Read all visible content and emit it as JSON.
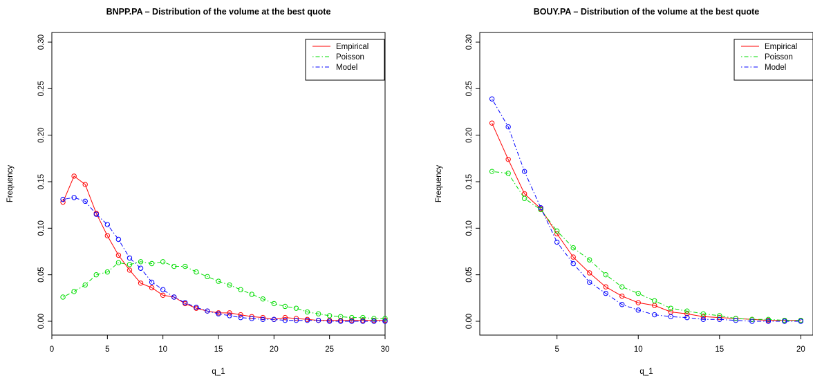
{
  "chart_data": [
    {
      "type": "line",
      "title": "BNPP.PA – Distribution of the volume at the best quote",
      "xlabel": "q_1",
      "ylabel": "Frequency",
      "xlim": [
        0,
        30
      ],
      "ylim": [
        0,
        0.3
      ],
      "xticks": [
        "0",
        "5",
        "10",
        "15",
        "20",
        "25",
        "30"
      ],
      "yticks": [
        "0.00",
        "0.05",
        "0.10",
        "0.15",
        "0.20",
        "0.25",
        "0.30"
      ],
      "legend_position": "top-right",
      "legend": [
        "Empirical",
        "Poisson",
        "Model"
      ],
      "x": [
        1,
        2,
        3,
        4,
        5,
        6,
        7,
        8,
        9,
        10,
        11,
        12,
        13,
        14,
        15,
        16,
        17,
        18,
        19,
        20,
        21,
        22,
        23,
        24,
        25,
        26,
        27,
        28,
        29,
        30
      ],
      "series": [
        {
          "name": "Empirical",
          "color": "#ff0000",
          "dash": "solid",
          "values": [
            0.128,
            0.156,
            0.147,
            0.116,
            0.092,
            0.071,
            0.055,
            0.041,
            0.036,
            0.028,
            0.026,
            0.019,
            0.014,
            0.011,
            0.009,
            0.009,
            0.007,
            0.005,
            0.004,
            0.002,
            0.004,
            0.003,
            0.002,
            0.001,
            0.001,
            0.001,
            0.001,
            0.001,
            0.001,
            0.001
          ]
        },
        {
          "name": "Poisson",
          "color": "#00dd00",
          "dash": "dotdash",
          "values": [
            0.026,
            0.032,
            0.039,
            0.05,
            0.053,
            0.063,
            0.061,
            0.064,
            0.062,
            0.064,
            0.059,
            0.059,
            0.053,
            0.048,
            0.043,
            0.039,
            0.034,
            0.029,
            0.024,
            0.019,
            0.016,
            0.014,
            0.01,
            0.008,
            0.006,
            0.005,
            0.004,
            0.004,
            0.003,
            0.003
          ]
        },
        {
          "name": "Model",
          "color": "#0000ff",
          "dash": "dotdash",
          "values": [
            0.131,
            0.133,
            0.129,
            0.115,
            0.104,
            0.088,
            0.068,
            0.057,
            0.042,
            0.034,
            0.026,
            0.02,
            0.015,
            0.011,
            0.008,
            0.006,
            0.004,
            0.003,
            0.002,
            0.002,
            0.001,
            0.001,
            0.001,
            0.001,
            0.0,
            0.0,
            0.0,
            0.0,
            0.0,
            0.0
          ]
        }
      ]
    },
    {
      "type": "line",
      "title": "BOUY.PA – Distribution of the volume at the best quote",
      "xlabel": "q_1",
      "ylabel": "Frequency",
      "xlim": [
        0.25,
        20.75
      ],
      "ylim": [
        0,
        0.3
      ],
      "xticks": [
        "5",
        "10",
        "15",
        "20"
      ],
      "yticks": [
        "0.00",
        "0.05",
        "0.10",
        "0.15",
        "0.20",
        "0.25",
        "0.30"
      ],
      "legend_position": "top-right",
      "legend": [
        "Empirical",
        "Poisson",
        "Model"
      ],
      "x": [
        1,
        2,
        3,
        4,
        5,
        6,
        7,
        8,
        9,
        10,
        11,
        12,
        13,
        14,
        15,
        16,
        17,
        18,
        19,
        20
      ],
      "series": [
        {
          "name": "Empirical",
          "color": "#ff0000",
          "dash": "solid",
          "values": [
            0.213,
            0.174,
            0.137,
            0.121,
            0.094,
            0.069,
            0.052,
            0.037,
            0.027,
            0.02,
            0.017,
            0.01,
            0.008,
            0.005,
            0.004,
            0.003,
            0.002,
            0.001,
            0.001,
            0.001
          ]
        },
        {
          "name": "Poisson",
          "color": "#00dd00",
          "dash": "dotdash",
          "values": [
            0.161,
            0.159,
            0.132,
            0.12,
            0.097,
            0.079,
            0.066,
            0.05,
            0.037,
            0.03,
            0.022,
            0.014,
            0.011,
            0.008,
            0.006,
            0.003,
            0.002,
            0.002,
            0.001,
            0.001
          ]
        },
        {
          "name": "Model",
          "color": "#0000ff",
          "dash": "dotdash",
          "values": [
            0.239,
            0.209,
            0.161,
            0.122,
            0.085,
            0.062,
            0.042,
            0.03,
            0.018,
            0.012,
            0.007,
            0.005,
            0.004,
            0.002,
            0.002,
            0.001,
            0.0,
            0.0,
            0.0,
            0.0
          ]
        }
      ]
    }
  ]
}
